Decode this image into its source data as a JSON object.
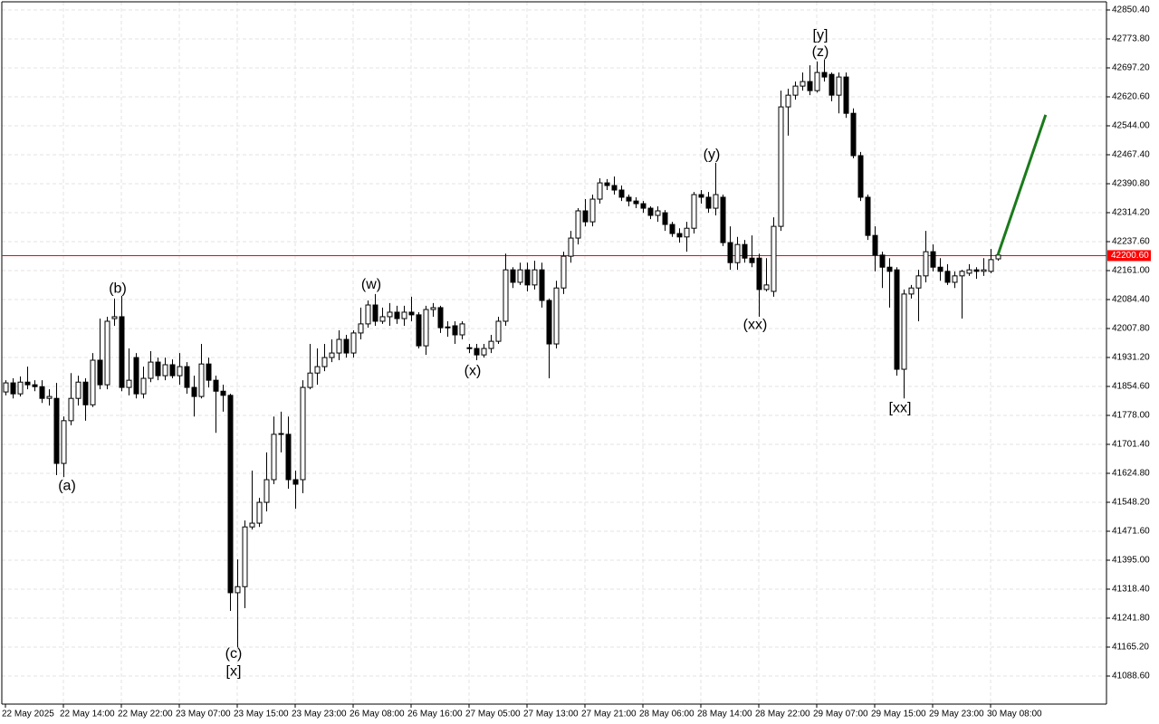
{
  "chart_data": {
    "type": "candlestick",
    "categories": [
      "22 May 2025",
      null,
      null,
      null,
      null,
      null,
      null,
      null,
      "22 May 14:00",
      null,
      null,
      null,
      null,
      null,
      null,
      null,
      "22 May 22:00",
      null,
      null,
      null,
      null,
      null,
      null,
      null,
      "23 May 07:00",
      null,
      null,
      null,
      null,
      null,
      null,
      null,
      "23 May 15:00",
      null,
      null,
      null,
      null,
      null,
      null,
      null,
      "23 May 23:00",
      null,
      null,
      null,
      null,
      null,
      null,
      null,
      "26 May 08:00",
      null,
      null,
      null,
      null,
      null,
      null,
      null,
      "26 May 16:00",
      null,
      null,
      null,
      null,
      null,
      null,
      null,
      "27 May 05:00",
      null,
      null,
      null,
      null,
      null,
      null,
      null,
      "27 May 13:00",
      null,
      null,
      null,
      null,
      null,
      null,
      null,
      "27 May 21:00",
      null,
      null,
      null,
      null,
      null,
      null,
      null,
      "28 May 06:00",
      null,
      null,
      null,
      null,
      null,
      null,
      null,
      "28 May 14:00",
      null,
      null,
      null,
      null,
      null,
      null,
      null,
      "28 May 22:00",
      null,
      null,
      null,
      null,
      null,
      null,
      null,
      "29 May 07:00",
      null,
      null,
      null,
      null,
      null,
      null,
      null,
      "29 May 15:00",
      null,
      null,
      null,
      null,
      null,
      null,
      null,
      "29 May 23:00",
      null,
      null,
      null,
      null,
      null,
      null,
      null,
      "30 May 08:00",
      null
    ],
    "open": [
      41840,
      41864,
      41835,
      41866,
      41859,
      41854,
      41823,
      41823,
      41651,
      41764,
      41823,
      41866,
      41806,
      41924,
      41859,
      42034,
      42039,
      41852,
      41931,
      41835,
      41876,
      41919,
      41883,
      41912,
      41883,
      41907,
      41852,
      41828,
      41914,
      41871,
      41842,
      41831,
      41309,
      41325,
      41483,
      41493,
      41548,
      41608,
      41728,
      41728,
      41608,
      41608,
      41852,
      41890,
      41907,
      41931,
      41943,
      41979,
      41943,
      41996,
      42020,
      42070,
      42027,
      42039,
      42051,
      42034,
      42051,
      42044,
      41962,
      42058,
      42063,
      42010,
      42015,
      41991,
      41955,
      41955,
      41938,
      41955,
      41974,
      42027,
      42163,
      42130,
      42163,
      42123,
      42163,
      42082,
      41967,
      42115,
      42199,
      42247,
      42319,
      42290,
      42350,
      42393,
      42386,
      42374,
      42355,
      42345,
      42338,
      42326,
      42307,
      42314,
      42283,
      42259,
      42250,
      42273,
      42362,
      42355,
      42326,
      42355,
      42235,
      42182,
      42230,
      42194,
      42194,
      42111,
      42106,
      42278,
      42594,
      42625,
      42649,
      42661,
      42637,
      42685,
      42680,
      42625,
      42673,
      42577,
      42465,
      42355,
      42254,
      42202,
      42170,
      42163,
      41900,
      42099,
      42115,
      42147,
      42211,
      42170,
      42159,
      42130,
      42147,
      42154,
      42163,
      42159,
      42159,
      42192
    ],
    "high": [
      41871,
      41876,
      41881,
      41907,
      41871,
      41871,
      41847,
      41864,
      41775,
      41890,
      41883,
      41876,
      41943,
      42034,
      42039,
      42087,
      42094,
      41955,
      41943,
      41907,
      41948,
      41931,
      41931,
      41926,
      41943,
      41919,
      41883,
      41967,
      41931,
      41883,
      41859,
      41835,
      41397,
      41500,
      41632,
      41560,
      41680,
      41775,
      41788,
      41775,
      41632,
      41871,
      41967,
      41955,
      41967,
      41979,
      42003,
      41991,
      42003,
      42063,
      42082,
      42099,
      42063,
      42075,
      42068,
      42068,
      42092,
      42051,
      42068,
      42075,
      42068,
      42027,
      42027,
      42027,
      41967,
      41967,
      41967,
      41991,
      42039,
      42206,
      42170,
      42182,
      42182,
      42187,
      42182,
      42087,
      42134,
      42211,
      42266,
      42326,
      42350,
      42362,
      42405,
      42403,
      42410,
      42386,
      42362,
      42355,
      42345,
      42331,
      42331,
      42321,
      42290,
      42273,
      42290,
      42369,
      42374,
      42369,
      42446,
      42362,
      42278,
      42250,
      42242,
      42254,
      42206,
      42194,
      42302,
      42637,
      42642,
      42661,
      42685,
      42704,
      42714,
      42719,
      42685,
      42685,
      42685,
      42590,
      42475,
      42362,
      42278,
      42211,
      42194,
      42170,
      42111,
      42123,
      42163,
      42266,
      42230,
      42194,
      42178,
      42159,
      42163,
      42178,
      42170,
      42194,
      42218,
      42211
    ],
    "low": [
      41831,
      41823,
      41828,
      41847,
      41842,
      41811,
      41804,
      41620,
      41615,
      41752,
      41804,
      41764,
      41800,
      41847,
      41847,
      42015,
      41842,
      41831,
      41823,
      41823,
      41866,
      41871,
      41871,
      41876,
      41859,
      41835,
      41775,
      41823,
      41852,
      41732,
      41788,
      41261,
      41165,
      41268,
      41476,
      41483,
      41524,
      41596,
      41680,
      41584,
      41531,
      41572,
      41847,
      41859,
      41895,
      41919,
      41924,
      41931,
      41931,
      41979,
      42010,
      42015,
      42020,
      42015,
      42020,
      42015,
      42027,
      41955,
      41938,
      42039,
      41996,
      41986,
      41967,
      41979,
      41943,
      41924,
      41931,
      41943,
      41967,
      42015,
      42115,
      42123,
      42106,
      42111,
      42063,
      41876,
      41955,
      42099,
      42182,
      42230,
      42278,
      42278,
      42338,
      42374,
      42362,
      42345,
      42331,
      42326,
      42314,
      42297,
      42290,
      42266,
      42250,
      42235,
      42211,
      42259,
      42338,
      42314,
      42307,
      42226,
      42163,
      42163,
      42182,
      42170,
      42039,
      42106,
      42092,
      42266,
      42518,
      42613,
      42637,
      42625,
      42632,
      42661,
      42609,
      42577,
      42565,
      42458,
      42345,
      42242,
      42159,
      42115,
      42063,
      41883,
      41823,
      42087,
      42027,
      42130,
      42159,
      42134,
      42123,
      42115,
      42034,
      42147,
      42139,
      42147,
      42154,
      42187
    ],
    "close": [
      41864,
      41835,
      41866,
      41859,
      41854,
      41823,
      41828,
      41651,
      41764,
      41823,
      41866,
      41806,
      41924,
      41859,
      42027,
      42039,
      41852,
      41871,
      41835,
      41876,
      41919,
      41883,
      41912,
      41883,
      41907,
      41852,
      41828,
      41914,
      41871,
      41842,
      41831,
      41309,
      41325,
      41483,
      41493,
      41548,
      41608,
      41728,
      41730,
      41608,
      41596,
      41852,
      41890,
      41907,
      41931,
      41943,
      41979,
      41943,
      41996,
      42020,
      42070,
      42027,
      42039,
      42051,
      42034,
      42051,
      42044,
      41962,
      42058,
      42063,
      42010,
      42012,
      41991,
      42020,
      41957,
      41938,
      41955,
      41974,
      42027,
      42163,
      42130,
      42163,
      42123,
      42163,
      42082,
      41967,
      42115,
      42199,
      42247,
      42319,
      42290,
      42350,
      42393,
      42386,
      42374,
      42355,
      42345,
      42338,
      42326,
      42307,
      42319,
      42283,
      42259,
      42250,
      42273,
      42362,
      42355,
      42326,
      42362,
      42235,
      42182,
      42230,
      42194,
      42182,
      42111,
      42123,
      42278,
      42594,
      42625,
      42649,
      42661,
      42637,
      42685,
      42673,
      42625,
      42673,
      42577,
      42465,
      42355,
      42254,
      42202,
      42170,
      42159,
      41900,
      42099,
      42115,
      42147,
      42211,
      42170,
      42159,
      42130,
      42147,
      42159,
      42163,
      42159,
      42163,
      42190,
      42202
    ],
    "bull_color": "#ffffff",
    "bear_color": "#000000",
    "wick_color": "#000000",
    "ylim": [
      41014.4,
      42876.7
    ],
    "yticks": [
      {
        "value": 41088.6,
        "label": "41088.60"
      },
      {
        "value": 41165.2,
        "label": "41165.20"
      },
      {
        "value": 41241.8,
        "label": "41241.80"
      },
      {
        "value": 41318.4,
        "label": "41318.40"
      },
      {
        "value": 41395,
        "label": "41395.00"
      },
      {
        "value": 41471.6,
        "label": "41471.60"
      },
      {
        "value": 41548.2,
        "label": "41548.20"
      },
      {
        "value": 41624.8,
        "label": "41624.80"
      },
      {
        "value": 41701.4,
        "label": "41701.40"
      },
      {
        "value": 41778,
        "label": "41778.00"
      },
      {
        "value": 41854.6,
        "label": "41854.60"
      },
      {
        "value": 41931.2,
        "label": "41931.20"
      },
      {
        "value": 42007.8,
        "label": "42007.80"
      },
      {
        "value": 42084.4,
        "label": "42084.40"
      },
      {
        "value": 42161,
        "label": "42161.00"
      },
      {
        "value": 42237.6,
        "label": "42237.60"
      },
      {
        "value": 42314.2,
        "label": "42314.20"
      },
      {
        "value": 42390.8,
        "label": "42390.80"
      },
      {
        "value": 42467.4,
        "label": "42467.40"
      },
      {
        "value": 42544,
        "label": "42544.00"
      },
      {
        "value": 42620.6,
        "label": "42620.60"
      },
      {
        "value": 42697.2,
        "label": "42697.20"
      },
      {
        "value": 42773.8,
        "label": "42773.80"
      },
      {
        "value": 42850.4,
        "label": "42850.40"
      }
    ],
    "grid": true,
    "price_line": {
      "value": 42200.6,
      "label": "42200.60",
      "color": "#ff0000"
    },
    "forecast": {
      "x": [
        137,
        143.6
      ],
      "values": [
        42202,
        42573
      ],
      "color": "#1a7a1a"
    },
    "annotations": [
      {
        "text": "(a)",
        "x": 8.5,
        "y": 41591,
        "color": "#2323c8"
      },
      {
        "text": "(b)",
        "x": 15.5,
        "y": 42113,
        "color": "#2323c8"
      },
      {
        "text": "(c)",
        "x": 31.5,
        "y": 41146,
        "color": "#2323c8"
      },
      {
        "text": "[x]",
        "x": 31.5,
        "y": 41100,
        "color": "#3cc83c"
      },
      {
        "text": "(w)",
        "x": 50.5,
        "y": 42123,
        "color": "#2323c8"
      },
      {
        "text": "(x)",
        "x": 64.5,
        "y": 41895,
        "color": "#2323c8"
      },
      {
        "text": "(y)",
        "x": 97.5,
        "y": 42467,
        "color": "#2323c8"
      },
      {
        "text": "(xx)",
        "x": 103.5,
        "y": 42017,
        "color": "#2323c8"
      },
      {
        "text": "[y]",
        "x": 112.5,
        "y": 42783,
        "color": "#3cc83c"
      },
      {
        "text": "(z)",
        "x": 112.5,
        "y": 42738,
        "color": "#2323c8"
      },
      {
        "text": "[xx]",
        "x": 123.5,
        "y": 41797,
        "color": "#3cc83c"
      }
    ]
  }
}
